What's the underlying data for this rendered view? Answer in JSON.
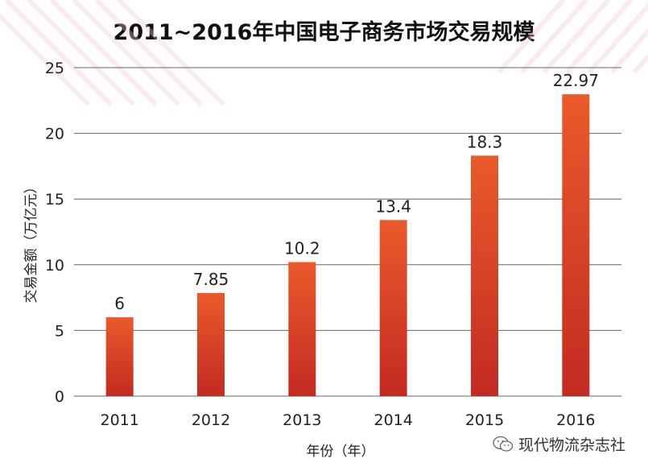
{
  "chart_data": {
    "type": "bar",
    "title": "2011~2016年中国电子商务市场交易规模",
    "xlabel": "年份（年）",
    "ylabel": "交易金额（万亿元）",
    "categories": [
      "2011",
      "2012",
      "2013",
      "2014",
      "2015",
      "2016"
    ],
    "values": [
      6,
      7.85,
      10.2,
      13.4,
      18.3,
      22.97
    ],
    "data_labels": [
      "6",
      "7.85",
      "10.2",
      "13.4",
      "18.3",
      "22.97"
    ],
    "ylim": [
      0,
      25
    ],
    "yticks": [
      "0",
      "5",
      "10",
      "15",
      "20",
      "25"
    ],
    "grid": true,
    "bar_color_top": "#ea5a2b",
    "bar_color_bottom": "#c42a22"
  },
  "watermark": {
    "text": "现代物流杂志社",
    "icon": "wechat-icon"
  }
}
